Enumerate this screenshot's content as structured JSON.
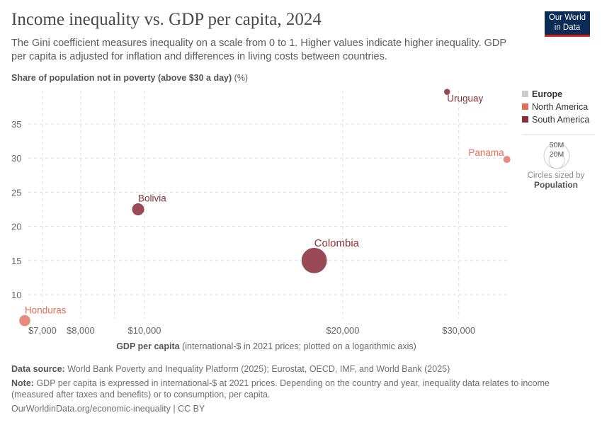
{
  "header": {
    "title": "Income inequality vs. GDP per capita, 2024",
    "subtitle": "The Gini coefficient measures inequality on a scale from 0 to 1. Higher values indicate higher inequality. GDP per capita is adjusted for inflation and differences in living costs between countries.",
    "logo": "Our World in Data"
  },
  "chart_data": {
    "type": "scatter",
    "title": "Income inequality vs. GDP per capita, 2024",
    "ylabel_bold": "Share of population not in poverty (above $30 a day)",
    "ylabel_unit": "(%)",
    "xlabel_bold": "GDP per capita",
    "xlabel_rest": "(international-$ in 2021 prices; plotted on a logarithmic axis)",
    "xscale": "log",
    "xlim": [
      6400,
      36000
    ],
    "ylim": [
      5.5,
      40
    ],
    "xticks": [
      {
        "v": 7000,
        "label": "$7,000"
      },
      {
        "v": 8000,
        "label": "$8,000"
      },
      {
        "v": 9000,
        "label": ""
      },
      {
        "v": 10000,
        "label": "$10,000"
      },
      {
        "v": 20000,
        "label": "$20,000"
      },
      {
        "v": 30000,
        "label": "$30,000"
      }
    ],
    "yticks": [
      10,
      15,
      20,
      25,
      30,
      35
    ],
    "grid": true,
    "points": [
      {
        "name": "Honduras",
        "region": "North America",
        "x": 6580,
        "y": 6.2,
        "population": 10.6
      },
      {
        "name": "Bolivia",
        "region": "South America",
        "x": 9780,
        "y": 22.5,
        "population": 12.4
      },
      {
        "name": "Colombia",
        "region": "South America",
        "x": 18100,
        "y": 15.0,
        "population": 52.9
      },
      {
        "name": "Uruguay",
        "region": "South America",
        "x": 28800,
        "y": 39.7,
        "population": 3.4
      },
      {
        "name": "Panama",
        "region": "North America",
        "x": 35500,
        "y": 29.8,
        "population": 4.5
      }
    ],
    "legend": {
      "placement": "right",
      "items": [
        {
          "label": "Europe",
          "color": "#cccccc"
        },
        {
          "label": "North America",
          "color": "#e56e5a"
        },
        {
          "label": "South America",
          "color": "#883039"
        }
      ],
      "size_legend": {
        "values": [
          "50M",
          "20M"
        ],
        "caption": "Circles sized by",
        "variable": "Population"
      }
    },
    "colors": {
      "North America": {
        "dot": "#e88a7b",
        "label": "#e56e5a"
      },
      "South America": {
        "dot": "#9a4a55",
        "label": "#883039"
      }
    }
  },
  "footer": {
    "source_label": "Data source:",
    "source": "World Bank Poverty and Inequality Platform (2025); Eurostat, OECD, IMF, and World Bank (2025)",
    "note_label": "Note:",
    "note": "GDP per capita is expressed in international-$ at 2021 prices. Depending on the country and year, inequality data relates to income (measured after taxes and benefits) or to consumption, per capita.",
    "url": "OurWorldinData.org/economic-inequality | CC BY"
  }
}
